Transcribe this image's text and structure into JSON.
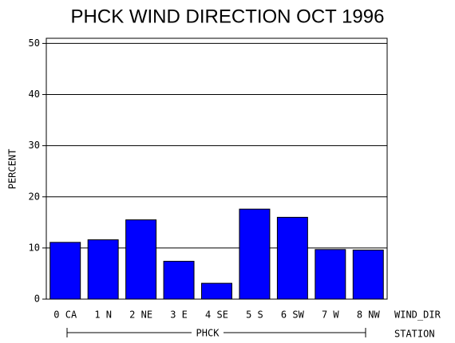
{
  "chart_data": {
    "type": "bar",
    "title": "PHCK WIND DIRECTION OCT 1996",
    "y_label": "PERCENT",
    "x_label": "WIND_DIR",
    "group_label": "PHCK",
    "group_axis_label": "STATION",
    "categories": [
      "0 CA",
      "1 N",
      "2 NE",
      "3 E",
      "4 SE",
      "5 S",
      "6 SW",
      "7 W",
      "8 NW"
    ],
    "values": [
      11.1,
      11.6,
      15.5,
      7.4,
      3.1,
      17.6,
      16.0,
      9.7,
      9.6
    ],
    "color": "#0000ff",
    "ylim": [
      0,
      51
    ],
    "yticks": [
      0,
      10,
      20,
      30,
      40,
      50
    ],
    "grid": true
  }
}
